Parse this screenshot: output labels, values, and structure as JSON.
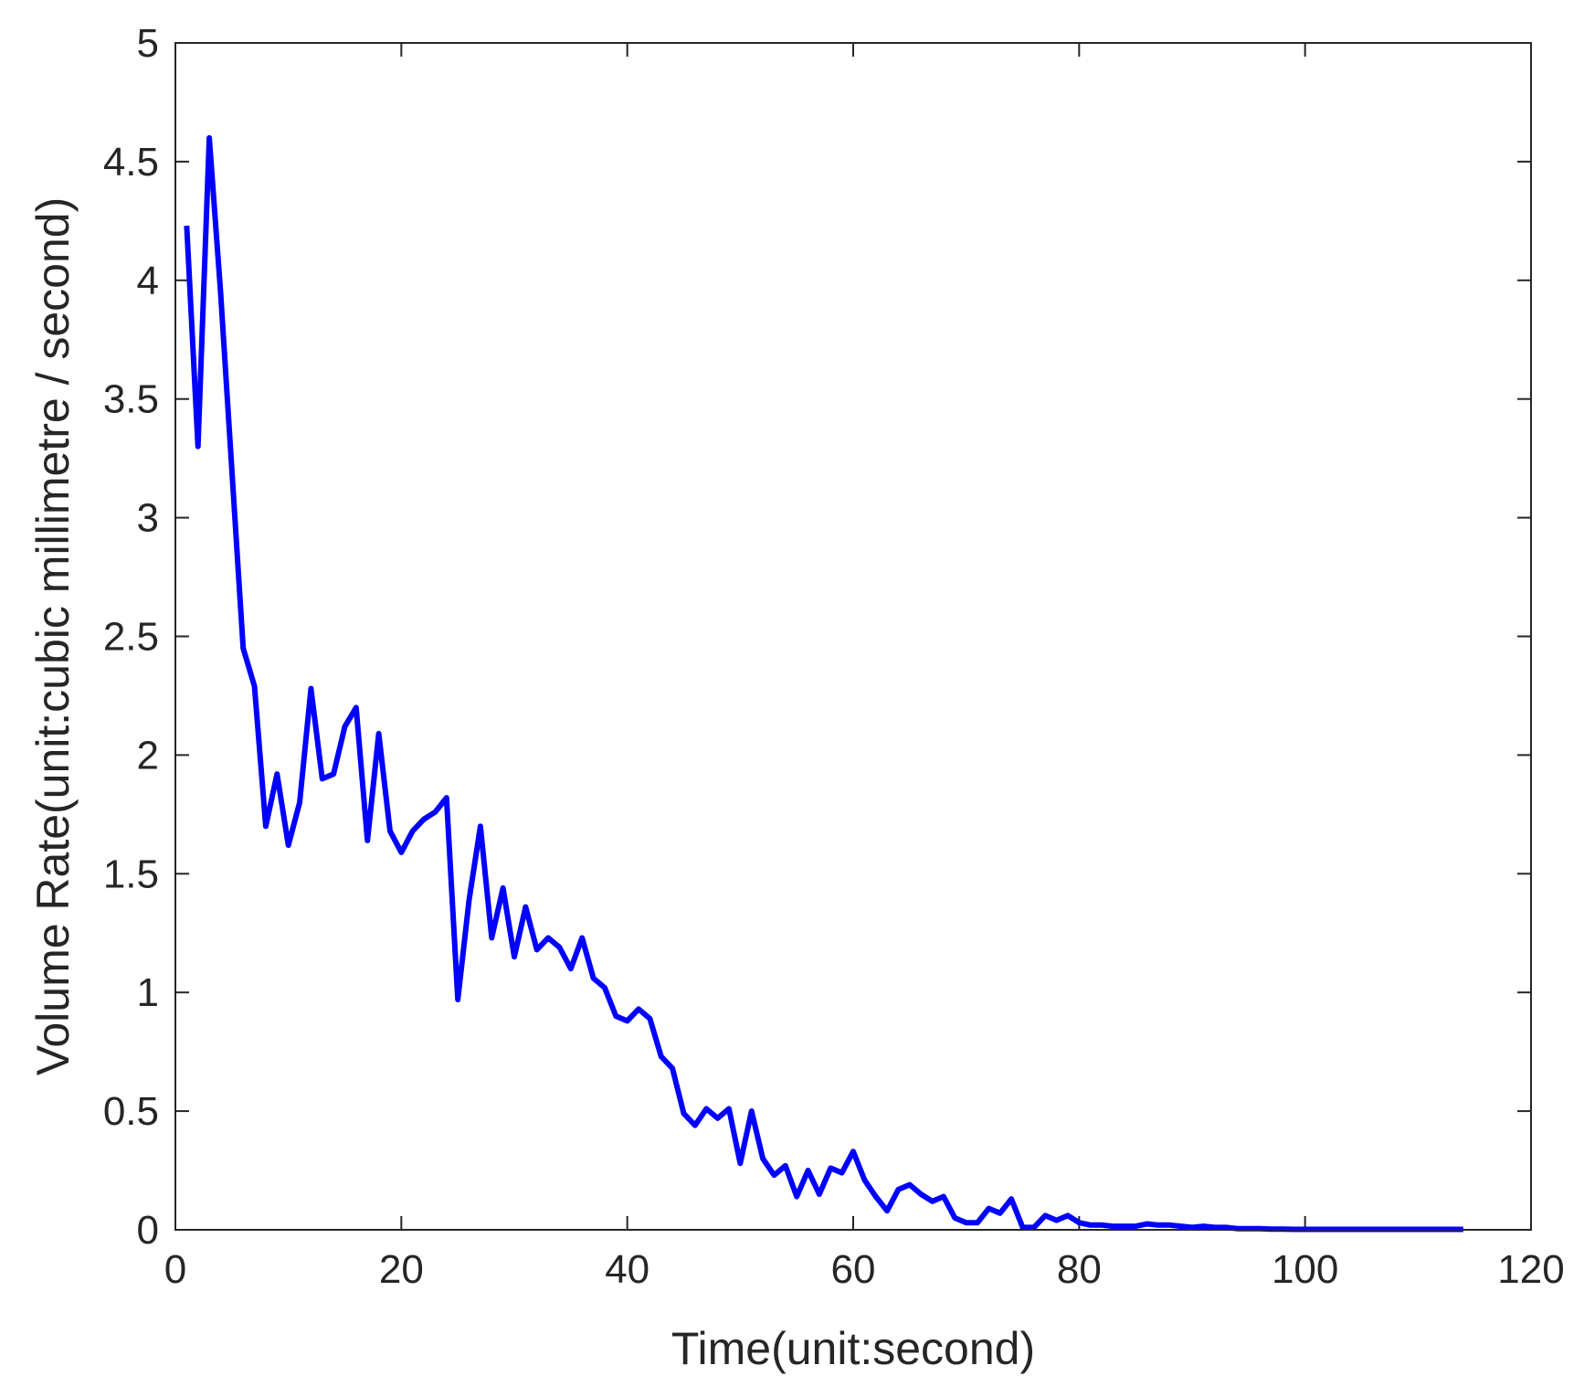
{
  "chart_data": {
    "type": "line",
    "title": "",
    "xlabel": "Time(unit:second)",
    "ylabel": "Volume Rate(unit:cubic millimetre / second)",
    "xlim": [
      0,
      120
    ],
    "ylim": [
      0,
      5
    ],
    "xticks": [
      0,
      20,
      40,
      60,
      80,
      100,
      120
    ],
    "yticks": [
      0,
      0.5,
      1,
      1.5,
      2,
      2.5,
      3,
      3.5,
      4,
      4.5,
      5
    ],
    "xtick_labels": [
      "0",
      "20",
      "40",
      "60",
      "80",
      "100",
      "120"
    ],
    "ytick_labels": [
      "0",
      "0.5",
      "1",
      "1.5",
      "2",
      "2.5",
      "3",
      "3.5",
      "4",
      "4.5",
      "5"
    ],
    "grid": false,
    "box": true,
    "line_color": "#0000ff",
    "series": [
      {
        "x": [
          1,
          2,
          3,
          4,
          5,
          6,
          7,
          8,
          9,
          10,
          11,
          12,
          13,
          14,
          15,
          16,
          17,
          18,
          19,
          20,
          21,
          22,
          23,
          24,
          25,
          26,
          27,
          28,
          29,
          30,
          31,
          32,
          33,
          34,
          35,
          36,
          37,
          38,
          39,
          40,
          41,
          42,
          43,
          44,
          45,
          46,
          47,
          48,
          49,
          50,
          51,
          52,
          53,
          54,
          55,
          56,
          57,
          58,
          59,
          60,
          61,
          62,
          63,
          64,
          65,
          66,
          67,
          68,
          69,
          70,
          71,
          72,
          73,
          74,
          75,
          76,
          77,
          78,
          79,
          80,
          81,
          82,
          83,
          84,
          85,
          86,
          87,
          88,
          89,
          90,
          91,
          92,
          93,
          94,
          95,
          96,
          97,
          98,
          99,
          100,
          101,
          102,
          103,
          104,
          105,
          106,
          107,
          108,
          109,
          110,
          111,
          112,
          113,
          114
        ],
        "y": [
          4.23,
          3.3,
          4.6,
          3.95,
          3.2,
          2.45,
          2.29,
          1.7,
          1.92,
          1.62,
          1.8,
          2.28,
          1.9,
          1.92,
          2.12,
          2.2,
          1.64,
          2.09,
          1.68,
          1.59,
          1.68,
          1.73,
          1.76,
          1.82,
          0.97,
          1.39,
          1.7,
          1.23,
          1.44,
          1.15,
          1.36,
          1.18,
          1.23,
          1.19,
          1.1,
          1.23,
          1.06,
          1.02,
          0.9,
          0.88,
          0.93,
          0.89,
          0.73,
          0.68,
          0.49,
          0.44,
          0.51,
          0.47,
          0.51,
          0.28,
          0.5,
          0.3,
          0.23,
          0.27,
          0.14,
          0.25,
          0.15,
          0.26,
          0.24,
          0.33,
          0.21,
          0.14,
          0.08,
          0.17,
          0.19,
          0.15,
          0.12,
          0.14,
          0.05,
          0.03,
          0.03,
          0.09,
          0.07,
          0.13,
          0.01,
          0.01,
          0.06,
          0.04,
          0.06,
          0.03,
          0.02,
          0.02,
          0.015,
          0.015,
          0.015,
          0.025,
          0.02,
          0.02,
          0.015,
          0.01,
          0.015,
          0.01,
          0.01,
          0.005,
          0.005,
          0.005,
          0.003,
          0.003,
          0.002,
          0.002,
          0.002,
          0.002,
          0.002,
          0.002,
          0.002,
          0.002,
          0.002,
          0.002,
          0.002,
          0.002,
          0.002,
          0.002,
          0.002,
          0.002
        ]
      }
    ]
  }
}
